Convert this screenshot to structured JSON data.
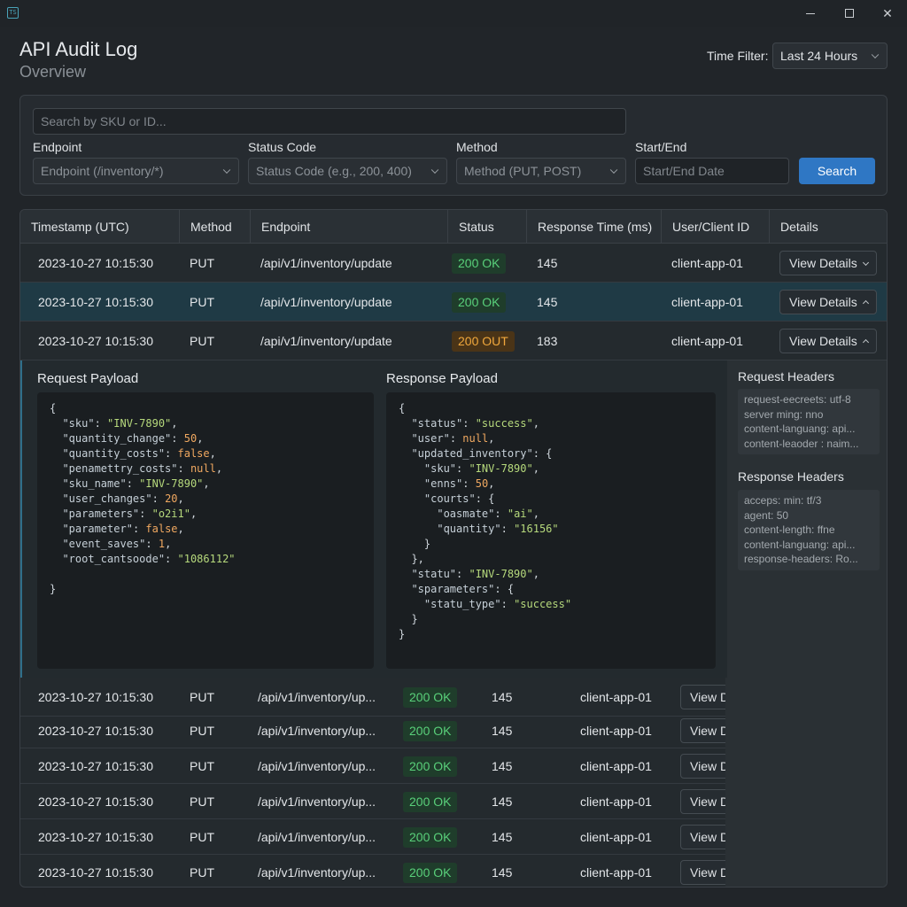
{
  "window": {
    "icon_text": "TS"
  },
  "header": {
    "title": "API Audit Log",
    "subtitle": "Overview"
  },
  "time_filter": {
    "label": "Time Filter:",
    "value": "Last 24 Hours"
  },
  "filters": {
    "search_placeholder": "Search by SKU or ID...",
    "endpoint_label": "Endpoint",
    "endpoint_value": "Endpoint (/inventory/*)",
    "status_label": "Status Code",
    "status_value": "Status Code (e.g., 200, 400)",
    "method_label": "Method",
    "method_value": "Method (PUT, POST)",
    "date_label": "Start/End",
    "date_placeholder": "Start/End Date",
    "search_button": "Search"
  },
  "table": {
    "columns": [
      "Timestamp (UTC)",
      "Method",
      "Endpoint",
      "Status",
      "Response Time (ms)",
      "User/Client ID",
      "Details"
    ],
    "top_rows": [
      {
        "timestamp": "2023-10-27 10:15:30",
        "method": "PUT",
        "endpoint": "/api/v1/inventory/update",
        "status": "200 OK",
        "time": "145",
        "client": "client-app-01",
        "details": "View Details"
      },
      {
        "timestamp": "2023-10-27 10:15:30",
        "method": "PUT",
        "endpoint": "/api/v1/inventory/update",
        "status": "200 OK",
        "time": "145",
        "client": "client-app-01",
        "details": "View Details"
      },
      {
        "timestamp": "2023-10-27 10:15:30",
        "method": "PUT",
        "endpoint": "/api/v1/inventory/update",
        "status": "200 OUT",
        "time": "183",
        "client": "client-app-01",
        "details": "View Details"
      }
    ],
    "bottom_rows": [
      {
        "timestamp": "2023-10-27 10:15:30",
        "method": "PUT",
        "endpoint": "/api/v1/inventory/up...",
        "status": "200 OK",
        "time": "145",
        "client": "client-app-01",
        "details": "View D"
      },
      {
        "timestamp": "2023-10-27 10:15:30",
        "method": "PUT",
        "endpoint": "/api/v1/inventory/up...",
        "status": "200 OK",
        "time": "145",
        "client": "client-app-01",
        "details": "View D"
      },
      {
        "timestamp": "2023-10-27 10:15:30",
        "method": "PUT",
        "endpoint": "/api/v1/inventory/up...",
        "status": "200 OK",
        "time": "145",
        "client": "client-app-01",
        "details": "View D"
      },
      {
        "timestamp": "2023-10-27 10:15:30",
        "method": "PUT",
        "endpoint": "/api/v1/inventory/up...",
        "status": "200 OK",
        "time": "145",
        "client": "client-app-01",
        "details": "View D"
      },
      {
        "timestamp": "2023-10-27 10:15:30",
        "method": "PUT",
        "endpoint": "/api/v1/inventory/up...",
        "status": "200 OK",
        "time": "145",
        "client": "client-app-01",
        "details": "View D"
      },
      {
        "timestamp": "2023-10-27 10:15:30",
        "method": "PUT",
        "endpoint": "/api/v1/inventory/up...",
        "status": "200 OK",
        "time": "145",
        "client": "client-app-01",
        "details": "View D"
      }
    ]
  },
  "expanded": {
    "request_title": "Request Payload",
    "response_title": "Response Payload",
    "request_lines": [
      [
        [
          "p",
          "{"
        ]
      ],
      [
        [
          "p",
          "  "
        ],
        [
          "k",
          "\"sku\""
        ],
        [
          "p",
          ": "
        ],
        [
          "s",
          "\"INV-7890\""
        ],
        [
          "p",
          ","
        ]
      ],
      [
        [
          "p",
          "  "
        ],
        [
          "k",
          "\"quantity_change\""
        ],
        [
          "p",
          ": "
        ],
        [
          "n",
          "50"
        ],
        [
          "p",
          ","
        ]
      ],
      [
        [
          "p",
          "  "
        ],
        [
          "k",
          "\"quantity_costs\""
        ],
        [
          "p",
          ": "
        ],
        [
          "n",
          "false"
        ],
        [
          "p",
          ","
        ]
      ],
      [
        [
          "p",
          "  "
        ],
        [
          "k",
          "\"penamettry_costs\""
        ],
        [
          "p",
          ": "
        ],
        [
          "n",
          "null"
        ],
        [
          "p",
          ","
        ]
      ],
      [
        [
          "p",
          "  "
        ],
        [
          "k",
          "\"sku_name\""
        ],
        [
          "p",
          ": "
        ],
        [
          "s",
          "\"INV-7890\""
        ],
        [
          "p",
          ","
        ]
      ],
      [
        [
          "p",
          "  "
        ],
        [
          "k",
          "\"user_changes\""
        ],
        [
          "p",
          ": "
        ],
        [
          "n",
          "20"
        ],
        [
          "p",
          ","
        ]
      ],
      [
        [
          "p",
          "  "
        ],
        [
          "k",
          "\"parameters\""
        ],
        [
          "p",
          ": "
        ],
        [
          "s",
          "\"o2i1\""
        ],
        [
          "p",
          ","
        ]
      ],
      [
        [
          "p",
          "  "
        ],
        [
          "k",
          "\"parameter\""
        ],
        [
          "p",
          ": "
        ],
        [
          "n",
          "false"
        ],
        [
          "p",
          ","
        ]
      ],
      [
        [
          "p",
          "  "
        ],
        [
          "k",
          "\"event_saves\""
        ],
        [
          "p",
          ": "
        ],
        [
          "n",
          "1"
        ],
        [
          "p",
          ","
        ]
      ],
      [
        [
          "p",
          "  "
        ],
        [
          "k",
          "\"root_cantsoode\""
        ],
        [
          "p",
          ": "
        ],
        [
          "s",
          "\"1086112\""
        ]
      ],
      [
        [
          "p",
          ""
        ]
      ],
      [
        [
          "p",
          "}"
        ]
      ]
    ],
    "response_lines": [
      [
        [
          "p",
          "{"
        ]
      ],
      [
        [
          "p",
          "  "
        ],
        [
          "k",
          "\"status\""
        ],
        [
          "p",
          ": "
        ],
        [
          "s",
          "\"success\""
        ],
        [
          "p",
          ","
        ]
      ],
      [
        [
          "p",
          "  "
        ],
        [
          "k",
          "\"user\""
        ],
        [
          "p",
          ": "
        ],
        [
          "n",
          "null"
        ],
        [
          "p",
          ","
        ]
      ],
      [
        [
          "p",
          "  "
        ],
        [
          "k",
          "\"updated_inventory\""
        ],
        [
          "p",
          ": {"
        ]
      ],
      [
        [
          "p",
          "    "
        ],
        [
          "k",
          "\"sku\""
        ],
        [
          "p",
          ": "
        ],
        [
          "s",
          "\"INV-7890\""
        ],
        [
          "p",
          ","
        ]
      ],
      [
        [
          "p",
          "    "
        ],
        [
          "k",
          "\"enns\""
        ],
        [
          "p",
          ": "
        ],
        [
          "n",
          "50"
        ],
        [
          "p",
          ","
        ]
      ],
      [
        [
          "p",
          "    "
        ],
        [
          "k",
          "\"courts\""
        ],
        [
          "p",
          ": {"
        ]
      ],
      [
        [
          "p",
          "      "
        ],
        [
          "k",
          "\"oasmate\""
        ],
        [
          "p",
          ": "
        ],
        [
          "s",
          "\"ai\""
        ],
        [
          "p",
          ","
        ]
      ],
      [
        [
          "p",
          "      "
        ],
        [
          "k",
          "\"quantity\""
        ],
        [
          "p",
          ": "
        ],
        [
          "s",
          "\"16156\""
        ]
      ],
      [
        [
          "p",
          "    }"
        ]
      ],
      [
        [
          "p",
          "  },"
        ]
      ],
      [
        [
          "p",
          "  "
        ],
        [
          "k",
          "\"statu\""
        ],
        [
          "p",
          ": "
        ],
        [
          "s",
          "\"INV-7890\""
        ],
        [
          "p",
          ","
        ]
      ],
      [
        [
          "p",
          "  "
        ],
        [
          "k",
          "\"sparameters\""
        ],
        [
          "p",
          ": {"
        ]
      ],
      [
        [
          "p",
          "    "
        ],
        [
          "k",
          "\"statu_type\""
        ],
        [
          "p",
          ": "
        ],
        [
          "s",
          "\"success\""
        ]
      ],
      [
        [
          "p",
          "  }"
        ]
      ],
      [
        [
          "p",
          "}"
        ]
      ]
    ],
    "request_headers_title": "Request Headers",
    "request_headers": [
      "request-eecreets: utf-8",
      "server ming: nno",
      "content-languang: api...",
      "content-leaoder : naim..."
    ],
    "response_headers_title": "Response Headers",
    "response_headers": [
      "acceps: min: tf/3",
      "agent: 50",
      "content-length: ffne",
      "content-languang: api...",
      "response-headers: Ro..."
    ]
  },
  "colors": {
    "accent": "#2f77c4",
    "ok": "#59d07a",
    "warn": "#f1a83c",
    "selected_row": "#1f3a45"
  }
}
